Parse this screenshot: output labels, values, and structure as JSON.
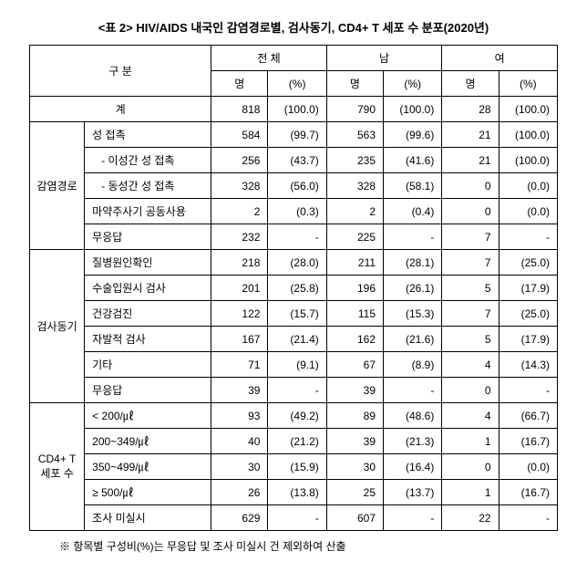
{
  "title": "<표 2> HIV/AIDS 내국인 감염경로별, 검사동기, CD4+ T 세포 수 분포(2020년)",
  "headers": {
    "category": "구 분",
    "total": "전 체",
    "male": "남",
    "female": "여",
    "count": "명",
    "percent": "(%)"
  },
  "totalRow": {
    "label": "계",
    "total_n": "818",
    "total_p": "(100.0)",
    "male_n": "790",
    "male_p": "(100.0)",
    "female_n": "28",
    "female_p": "(100.0)"
  },
  "groups": [
    {
      "name": "감염경로",
      "rows": [
        {
          "label": "성 접촉",
          "total_n": "584",
          "total_p": "(99.7)",
          "male_n": "563",
          "male_p": "(99.6)",
          "female_n": "21",
          "female_p": "(100.0)"
        },
        {
          "label": "   - 이성간 성 접촉",
          "total_n": "256",
          "total_p": "(43.7)",
          "male_n": "235",
          "male_p": "(41.6)",
          "female_n": "21",
          "female_p": "(100.0)"
        },
        {
          "label": "   - 동성간 성 접촉",
          "total_n": "328",
          "total_p": "(56.0)",
          "male_n": "328",
          "male_p": "(58.1)",
          "female_n": "0",
          "female_p": "(0.0)"
        },
        {
          "label": "마약주사기 공동사용",
          "total_n": "2",
          "total_p": "(0.3)",
          "male_n": "2",
          "male_p": "(0.4)",
          "female_n": "0",
          "female_p": "(0.0)"
        },
        {
          "label": "무응답",
          "total_n": "232",
          "total_p": "-",
          "male_n": "225",
          "male_p": "-",
          "female_n": "7",
          "female_p": "-"
        }
      ]
    },
    {
      "name": "검사동기",
      "rows": [
        {
          "label": "질병원인확인",
          "total_n": "218",
          "total_p": "(28.0)",
          "male_n": "211",
          "male_p": "(28.1)",
          "female_n": "7",
          "female_p": "(25.0)"
        },
        {
          "label": "수술입원시 검사",
          "total_n": "201",
          "total_p": "(25.8)",
          "male_n": "196",
          "male_p": "(26.1)",
          "female_n": "5",
          "female_p": "(17.9)"
        },
        {
          "label": "건강검진",
          "total_n": "122",
          "total_p": "(15.7)",
          "male_n": "115",
          "male_p": "(15.3)",
          "female_n": "7",
          "female_p": "(25.0)"
        },
        {
          "label": "자발적 검사",
          "total_n": "167",
          "total_p": "(21.4)",
          "male_n": "162",
          "male_p": "(21.6)",
          "female_n": "5",
          "female_p": "(17.9)"
        },
        {
          "label": "기타",
          "total_n": "71",
          "total_p": "(9.1)",
          "male_n": "67",
          "male_p": "(8.9)",
          "female_n": "4",
          "female_p": "(14.3)"
        },
        {
          "label": "무응답",
          "total_n": "39",
          "total_p": "-",
          "male_n": "39",
          "male_p": "-",
          "female_n": "0",
          "female_p": "-"
        }
      ]
    },
    {
      "name": "CD4+ T 세포 수",
      "rows": [
        {
          "label": "< 200/㎕",
          "total_n": "93",
          "total_p": "(49.2)",
          "male_n": "89",
          "male_p": "(48.6)",
          "female_n": "4",
          "female_p": "(66.7)"
        },
        {
          "label": "200~349/㎕",
          "total_n": "40",
          "total_p": "(21.2)",
          "male_n": "39",
          "male_p": "(21.3)",
          "female_n": "1",
          "female_p": "(16.7)"
        },
        {
          "label": "350~499/㎕",
          "total_n": "30",
          "total_p": "(15.9)",
          "male_n": "30",
          "male_p": "(16.4)",
          "female_n": "0",
          "female_p": "(0.0)"
        },
        {
          "label": "≥ 500/㎕",
          "total_n": "26",
          "total_p": "(13.8)",
          "male_n": "25",
          "male_p": "(13.7)",
          "female_n": "1",
          "female_p": "(16.7)"
        },
        {
          "label": "조사 미실시",
          "total_n": "629",
          "total_p": "-",
          "male_n": "607",
          "male_p": "-",
          "female_n": "22",
          "female_p": "-"
        }
      ]
    }
  ],
  "footnote": "※ 항목별 구성비(%)는 무응답 및 조사 미실시 건 제외하여 산출"
}
